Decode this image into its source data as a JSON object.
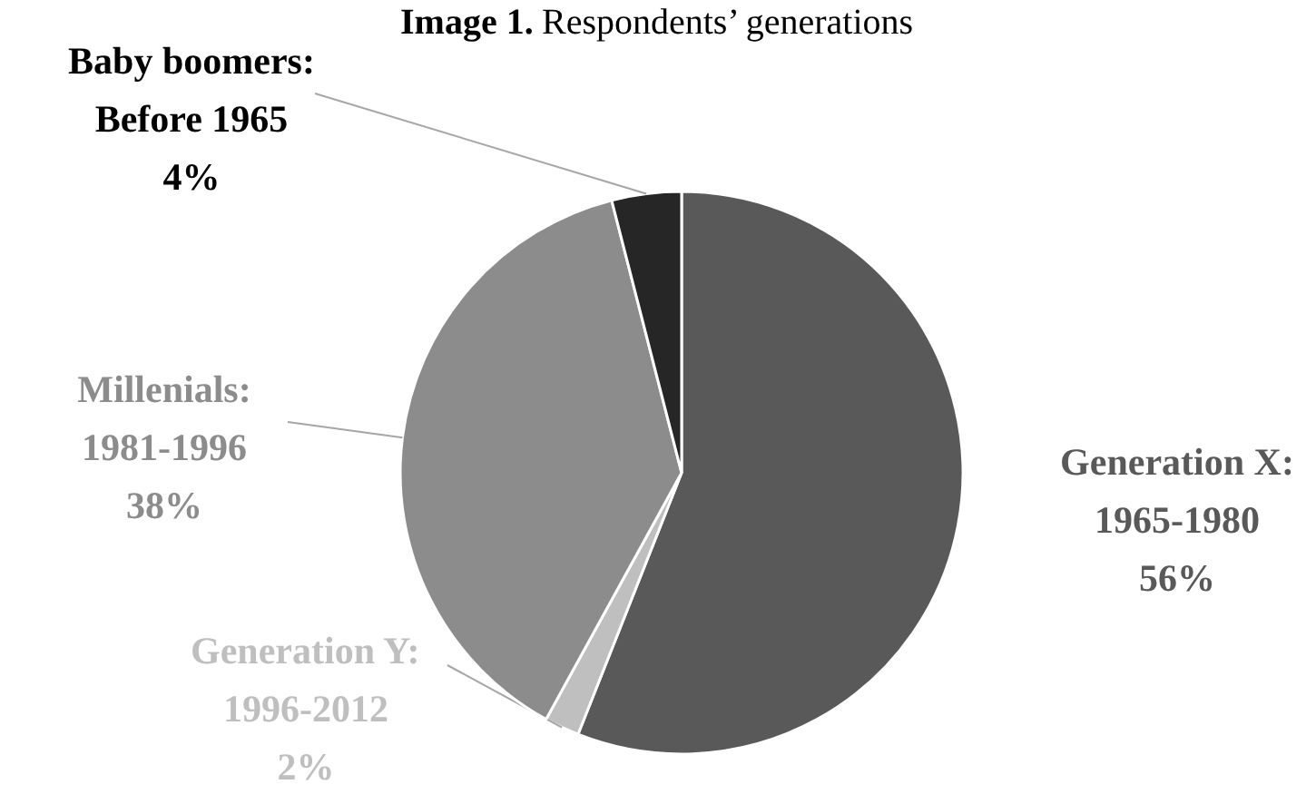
{
  "chart_data": {
    "type": "pie",
    "title": "Image 1. Respondents’ generations",
    "categories": [
      "Generation X: 1965-1980",
      "Generation Y: 1996-2012",
      "Millenials: 1981-1996",
      "Baby boomers: Before 1965"
    ],
    "values": [
      56,
      2,
      38,
      4
    ],
    "colors": [
      "#595959",
      "#bfbfbf",
      "#8c8c8c",
      "#262626"
    ],
    "value_labels": [
      "56%",
      "2%",
      "38%",
      "4%"
    ]
  }
}
